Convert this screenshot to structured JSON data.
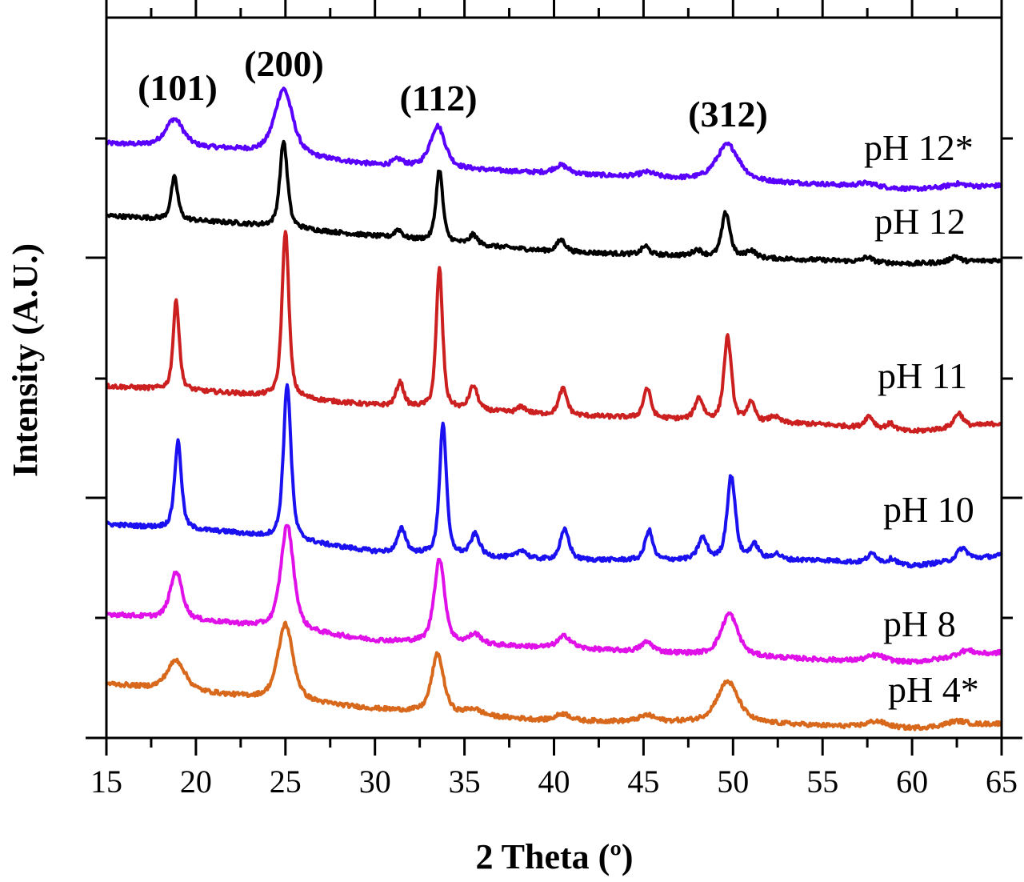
{
  "chart_data": {
    "type": "line",
    "title": "",
    "xlabel": "2 Theta (º)",
    "ylabel": "Intensity (A.U.)",
    "xlim": [
      15,
      65
    ],
    "ylim": [
      0,
      6
    ],
    "xticks": [
      15,
      20,
      25,
      30,
      35,
      40,
      45,
      50,
      55,
      60,
      65
    ],
    "xtick_labels": [
      "15",
      "20",
      "25",
      "30",
      "35",
      "40",
      "45",
      "50",
      "55",
      "60",
      "65"
    ],
    "grid": false,
    "legend": "inline labels at right of each curve",
    "peak_annotations": [
      {
        "label": "(101)",
        "x": 18.9
      },
      {
        "label": "(200)",
        "x": 25.0
      },
      {
        "label": "(112)",
        "x": 33.6
      },
      {
        "label": "(312)",
        "x": 49.8
      }
    ],
    "series": [
      {
        "name": "pH 12*",
        "color": "#5a00ff",
        "baseline": [
          [
            15,
            4.95
          ],
          [
            22,
            4.9
          ],
          [
            30,
            4.77
          ],
          [
            40,
            4.7
          ],
          [
            55,
            4.61
          ],
          [
            60,
            4.57
          ],
          [
            65,
            4.6
          ]
        ],
        "peaks": [
          [
            18.8,
            0.23,
            1.2
          ],
          [
            24.9,
            0.55,
            1.2
          ],
          [
            31.3,
            0.05,
            0.7
          ],
          [
            33.5,
            0.35,
            1.0
          ],
          [
            40.4,
            0.07,
            1.0
          ],
          [
            45.2,
            0.04,
            1.0
          ],
          [
            49.7,
            0.3,
            1.5
          ],
          [
            57.5,
            0.03,
            1.2
          ],
          [
            62.5,
            0.03,
            1.2
          ]
        ]
      },
      {
        "name": "pH 12",
        "color": "#000000",
        "baseline": [
          [
            15,
            4.35
          ],
          [
            22,
            4.29
          ],
          [
            30,
            4.18
          ],
          [
            40,
            4.05
          ],
          [
            55,
            3.98
          ],
          [
            60,
            3.95
          ],
          [
            65,
            3.98
          ]
        ],
        "peaks": [
          [
            18.8,
            0.35,
            0.45
          ],
          [
            24.9,
            0.72,
            0.5
          ],
          [
            31.3,
            0.07,
            0.5
          ],
          [
            33.6,
            0.6,
            0.45
          ],
          [
            35.5,
            0.08,
            0.5
          ],
          [
            40.4,
            0.1,
            0.6
          ],
          [
            45.1,
            0.07,
            0.5
          ],
          [
            48.0,
            0.05,
            0.6
          ],
          [
            49.6,
            0.37,
            0.55
          ],
          [
            51.0,
            0.06,
            0.6
          ],
          [
            57.5,
            0.04,
            0.6
          ],
          [
            62.4,
            0.05,
            0.6
          ]
        ]
      },
      {
        "name": "pH 11",
        "color": "#cc1f1f",
        "baseline": [
          [
            15,
            2.93
          ],
          [
            22,
            2.87
          ],
          [
            30,
            2.77
          ],
          [
            40,
            2.69
          ],
          [
            55,
            2.61
          ],
          [
            60,
            2.55
          ],
          [
            65,
            2.62
          ]
        ],
        "peaks": [
          [
            18.9,
            0.75,
            0.4
          ],
          [
            25.0,
            1.4,
            0.45
          ],
          [
            31.4,
            0.2,
            0.5
          ],
          [
            33.6,
            1.17,
            0.42
          ],
          [
            35.5,
            0.2,
            0.55
          ],
          [
            38.2,
            0.05,
            0.6
          ],
          [
            40.5,
            0.22,
            0.55
          ],
          [
            45.2,
            0.25,
            0.5
          ],
          [
            48.1,
            0.18,
            0.55
          ],
          [
            49.7,
            0.7,
            0.5
          ],
          [
            51.0,
            0.15,
            0.55
          ],
          [
            52.3,
            0.05,
            0.6
          ],
          [
            57.6,
            0.1,
            0.6
          ],
          [
            58.8,
            0.05,
            0.6
          ],
          [
            62.6,
            0.12,
            0.6
          ]
        ]
      },
      {
        "name": "pH 10",
        "color": "#1a10f0",
        "baseline": [
          [
            15,
            1.78
          ],
          [
            22,
            1.71
          ],
          [
            30,
            1.55
          ],
          [
            40,
            1.48
          ],
          [
            55,
            1.48
          ],
          [
            60,
            1.43
          ],
          [
            65,
            1.52
          ]
        ],
        "peaks": [
          [
            19.0,
            0.73,
            0.45
          ],
          [
            25.1,
            1.3,
            0.5
          ],
          [
            31.5,
            0.2,
            0.55
          ],
          [
            33.8,
            1.1,
            0.45
          ],
          [
            35.6,
            0.18,
            0.6
          ],
          [
            38.2,
            0.07,
            0.6
          ],
          [
            40.6,
            0.25,
            0.6
          ],
          [
            45.3,
            0.25,
            0.5
          ],
          [
            48.3,
            0.18,
            0.6
          ],
          [
            49.9,
            0.7,
            0.55
          ],
          [
            51.2,
            0.12,
            0.6
          ],
          [
            52.4,
            0.05,
            0.6
          ],
          [
            57.8,
            0.08,
            0.7
          ],
          [
            58.9,
            0.05,
            0.6
          ],
          [
            62.8,
            0.1,
            0.7
          ]
        ]
      },
      {
        "name": "pH 8",
        "color": "#e010e8",
        "baseline": [
          [
            15,
            1.03
          ],
          [
            22,
            0.95
          ],
          [
            30,
            0.81
          ],
          [
            40,
            0.75
          ],
          [
            55,
            0.65
          ],
          [
            60,
            0.63
          ],
          [
            65,
            0.71
          ]
        ],
        "peaks": [
          [
            18.9,
            0.4,
            0.8
          ],
          [
            25.1,
            0.88,
            0.85
          ],
          [
            33.6,
            0.7,
            0.7
          ],
          [
            35.6,
            0.08,
            0.8
          ],
          [
            40.6,
            0.1,
            0.9
          ],
          [
            45.2,
            0.08,
            0.8
          ],
          [
            49.8,
            0.35,
            1.1
          ],
          [
            58.0,
            0.05,
            1.2
          ],
          [
            63.0,
            0.05,
            1.2
          ]
        ]
      },
      {
        "name": "pH 4*",
        "color": "#d8691c",
        "baseline": [
          [
            15,
            0.45
          ],
          [
            22,
            0.35
          ],
          [
            30,
            0.24
          ],
          [
            40,
            0.14
          ],
          [
            50,
            0.13
          ],
          [
            55,
            0.1
          ],
          [
            60,
            0.08
          ],
          [
            65,
            0.12
          ]
        ],
        "peaks": [
          [
            18.9,
            0.25,
            1.2
          ],
          [
            25.0,
            0.64,
            1.0
          ],
          [
            33.5,
            0.49,
            0.8
          ],
          [
            35.5,
            0.05,
            1.0
          ],
          [
            40.5,
            0.06,
            1.0
          ],
          [
            45.2,
            0.05,
            1.0
          ],
          [
            49.7,
            0.34,
            1.4
          ],
          [
            58.0,
            0.05,
            1.3
          ],
          [
            62.5,
            0.04,
            1.3
          ]
        ]
      }
    ]
  }
}
